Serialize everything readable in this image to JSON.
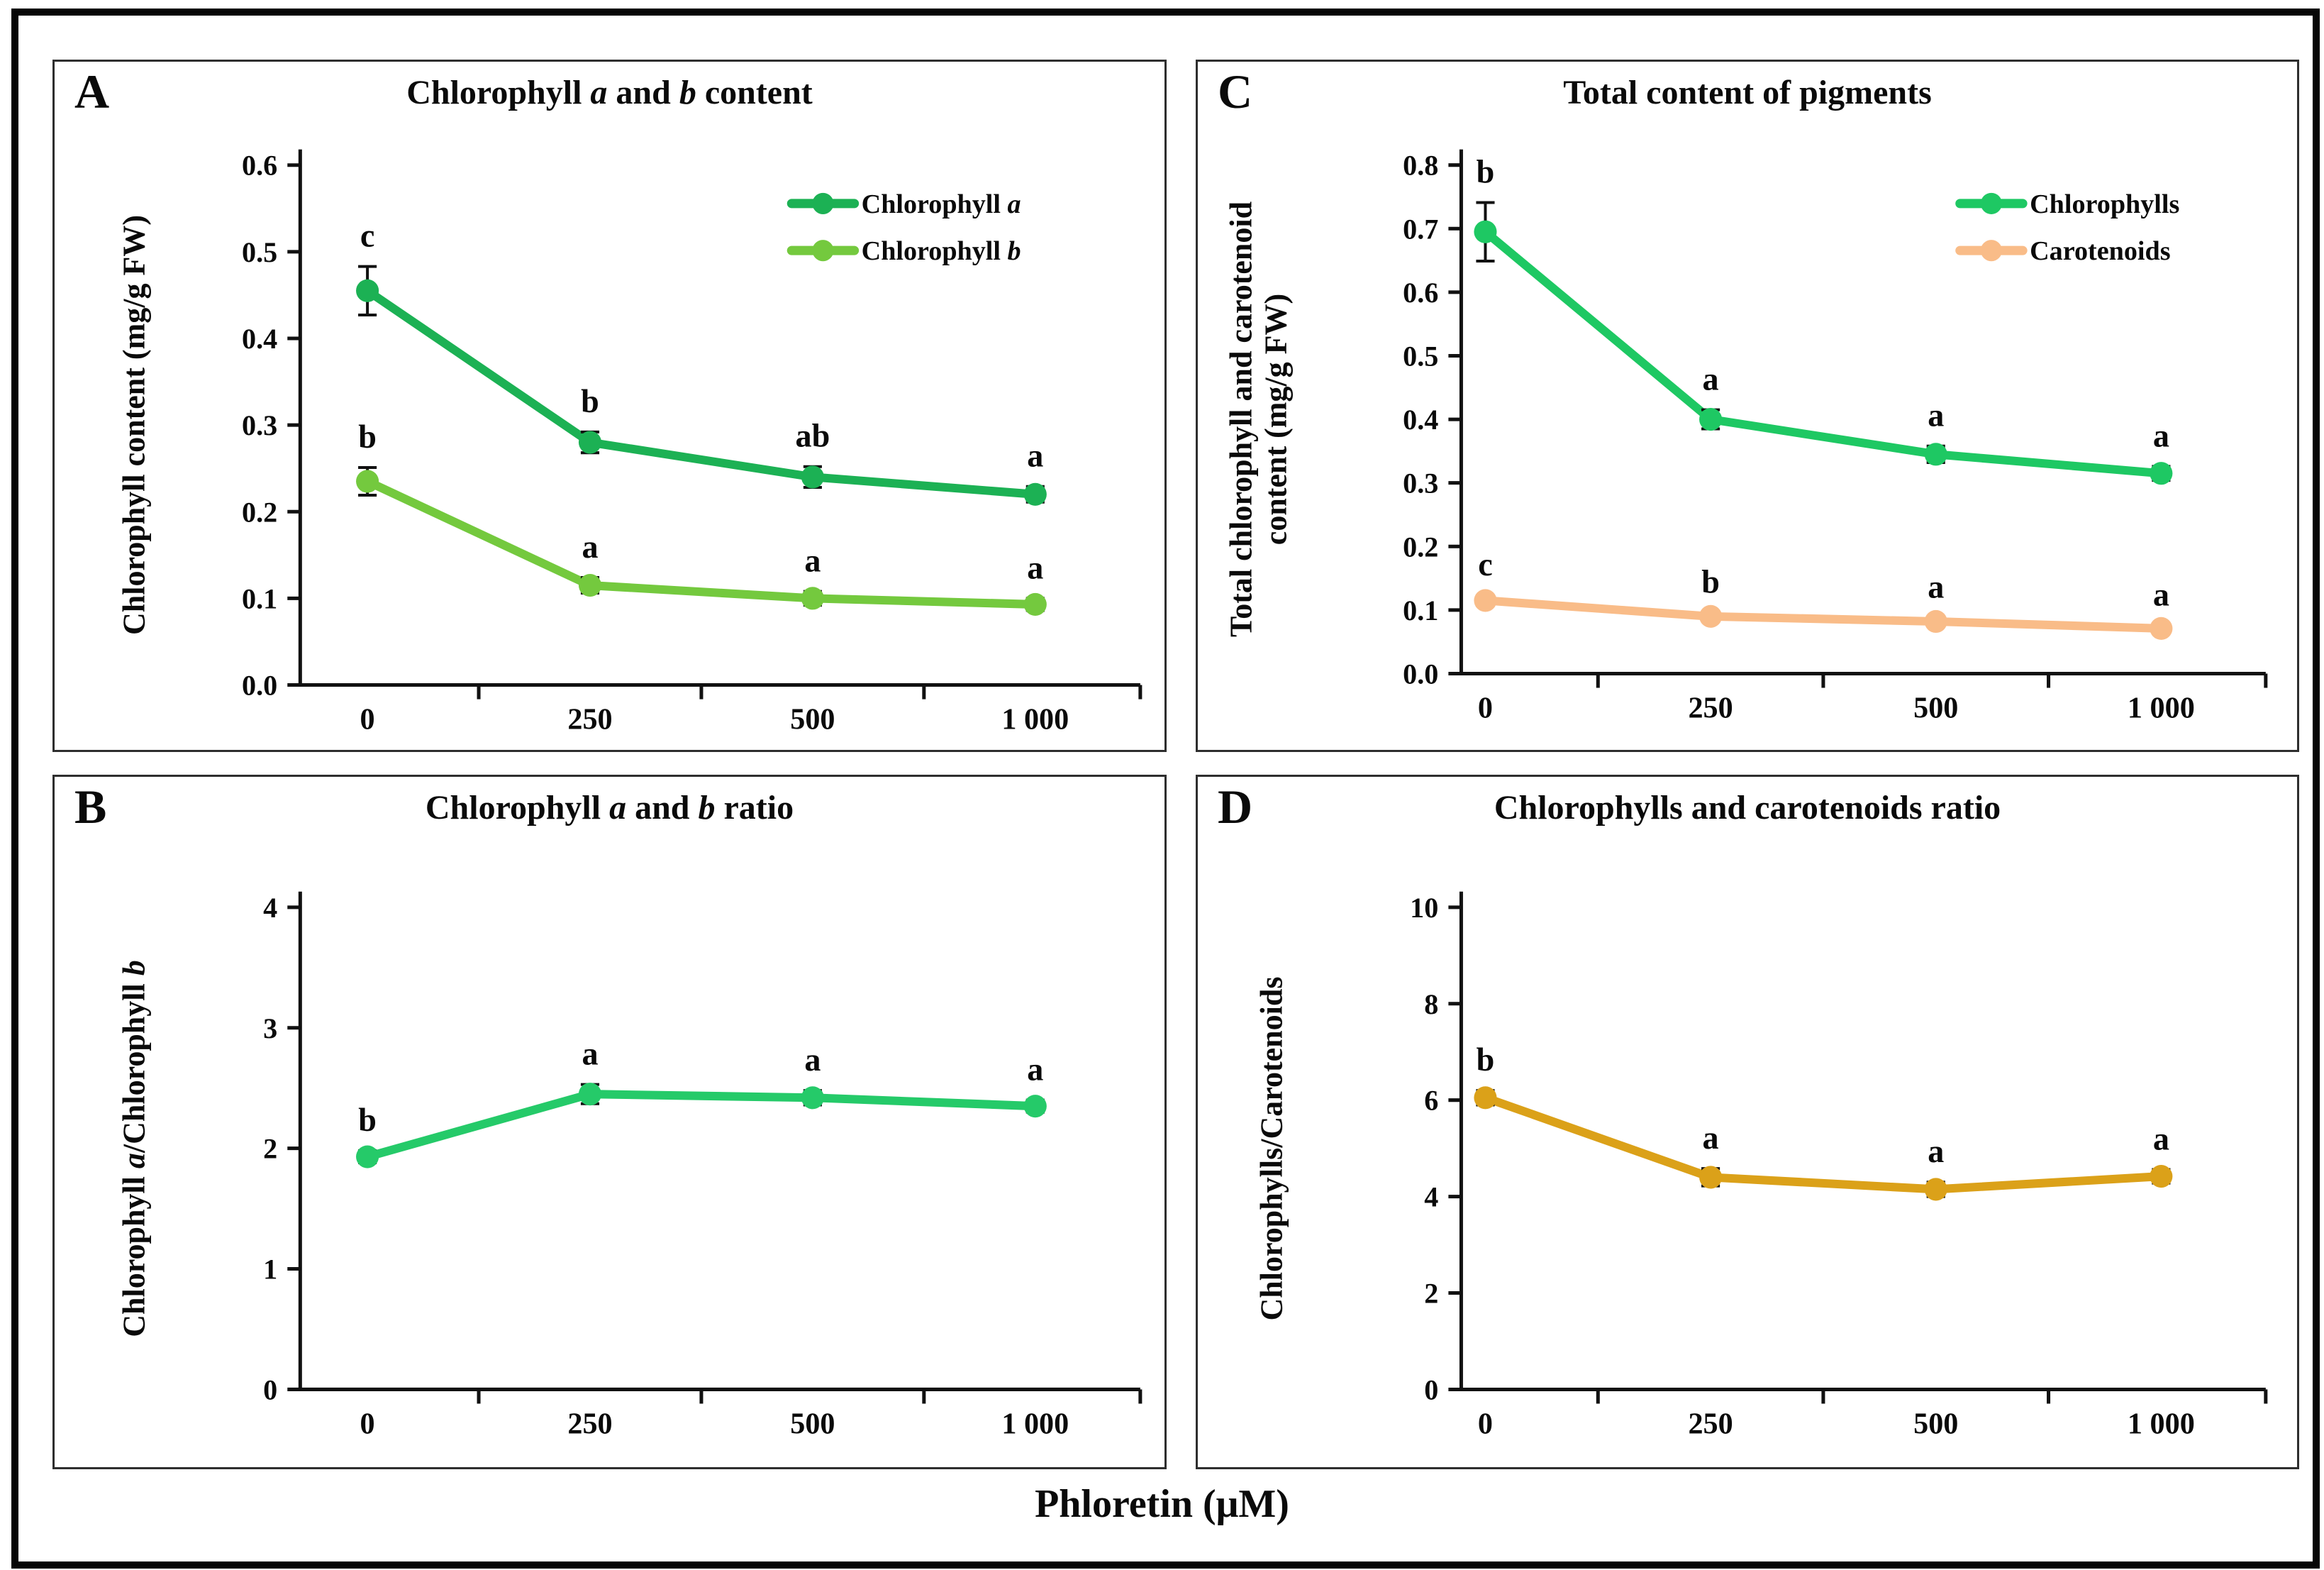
{
  "figure": {
    "xlabel": "Phloretin (μM)",
    "frame_color": "#060606",
    "background": "#ffffff",
    "error_bar_color": "#111111"
  },
  "chart_data": [
    {
      "panel_letter": "A",
      "type": "line",
      "title": "Chlorophyll a and b content",
      "title_segments": [
        {
          "t": "Chlorophyll ",
          "i": false
        },
        {
          "t": "a",
          "i": true
        },
        {
          "t": " and ",
          "i": false
        },
        {
          "t": "b",
          "i": true
        },
        {
          "t": " content",
          "i": false
        }
      ],
      "ylabel": "Chlorophyll content (mg/g FW)",
      "ylabel_lines": [
        [
          {
            "t": "Chlorophyll content (mg/g FW)",
            "i": false
          }
        ]
      ],
      "categories": [
        "0",
        "250",
        "500",
        "1 000"
      ],
      "ylim": [
        0,
        0.6
      ],
      "ytick_labels": [
        "0.0",
        "0.1",
        "0.2",
        "0.3",
        "0.4",
        "0.5",
        "0.6"
      ],
      "grid": false,
      "legend_position": "top-right",
      "show_legend": true,
      "series": [
        {
          "name": "Chlorophyll a",
          "name_segments": [
            {
              "t": "Chlorophyll ",
              "i": false
            },
            {
              "t": "a",
              "i": true
            }
          ],
          "color": "#1cb154",
          "values": [
            0.455,
            0.28,
            0.24,
            0.22
          ],
          "errors": [
            0.028,
            0.012,
            0.012,
            0.009
          ],
          "point_labels": [
            "c",
            "b",
            "ab",
            "a"
          ]
        },
        {
          "name": "Chlorophyll b",
          "name_segments": [
            {
              "t": "Chlorophyll ",
              "i": false
            },
            {
              "t": "b",
              "i": true
            }
          ],
          "color": "#74c93e",
          "values": [
            0.235,
            0.115,
            0.1,
            0.093
          ],
          "errors": [
            0.016,
            0.009,
            0.008,
            0.007
          ],
          "point_labels": [
            "b",
            "a",
            "a",
            "a"
          ]
        }
      ]
    },
    {
      "panel_letter": "B",
      "type": "line",
      "title": "Chlorophyll a and b ratio",
      "title_segments": [
        {
          "t": "Chlorophyll ",
          "i": false
        },
        {
          "t": "a",
          "i": true
        },
        {
          "t": " and ",
          "i": false
        },
        {
          "t": "b",
          "i": true
        },
        {
          "t": " ratio",
          "i": false
        }
      ],
      "ylabel": "Chlorophyll a/Chlorophyll b",
      "ylabel_lines": [
        [
          {
            "t": "Chlorophyll ",
            "i": false
          },
          {
            "t": "a",
            "i": true
          },
          {
            "t": "/Chlorophyll ",
            "i": false
          },
          {
            "t": "b",
            "i": true
          }
        ]
      ],
      "categories": [
        "0",
        "250",
        "500",
        "1 000"
      ],
      "ylim": [
        0,
        4
      ],
      "ytick_labels": [
        "0",
        "1",
        "2",
        "3",
        "4"
      ],
      "grid": false,
      "show_legend": false,
      "series": [
        {
          "name": "Chlorophyll a/Chlorophyll b",
          "color": "#25ca69",
          "values": [
            1.93,
            2.45,
            2.42,
            2.35
          ],
          "errors": [
            0.05,
            0.08,
            0.06,
            0.05
          ],
          "point_labels": [
            "b",
            "a",
            "a",
            "a"
          ]
        }
      ]
    },
    {
      "panel_letter": "C",
      "type": "line",
      "title": "Total content of pigments",
      "title_segments": [
        {
          "t": "Total content of pigments",
          "i": false
        }
      ],
      "ylabel": "Total chlorophyll and carotenoid content (mg/g FW)",
      "ylabel_lines": [
        [
          {
            "t": "Total chlorophyll and carotenoid",
            "i": false
          }
        ],
        [
          {
            "t": "content (mg/g FW)",
            "i": false
          }
        ]
      ],
      "categories": [
        "0",
        "250",
        "500",
        "1 000"
      ],
      "ylim": [
        0,
        0.8
      ],
      "ytick_labels": [
        "0.0",
        "0.1",
        "0.2",
        "0.3",
        "0.4",
        "0.5",
        "0.6",
        "0.7",
        "0.8"
      ],
      "grid": false,
      "legend_position": "top-right",
      "show_legend": true,
      "series": [
        {
          "name": "Chlorophylls",
          "name_segments": [
            {
              "t": "Chlorophylls",
              "i": false
            }
          ],
          "color": "#1ec863",
          "values": [
            0.695,
            0.4,
            0.345,
            0.315
          ],
          "errors": [
            0.046,
            0.015,
            0.013,
            0.011
          ],
          "point_labels": [
            "b",
            "a",
            "a",
            "a"
          ]
        },
        {
          "name": "Carotenoids",
          "name_segments": [
            {
              "t": "Carotenoids",
              "i": false
            }
          ],
          "color": "#f9bc88",
          "values": [
            0.115,
            0.09,
            0.082,
            0.071
          ],
          "errors": [
            0.008,
            0.006,
            0.006,
            0.005
          ],
          "point_labels": [
            "c",
            "b",
            "a",
            "a"
          ]
        }
      ]
    },
    {
      "panel_letter": "D",
      "type": "line",
      "title": "Chlorophylls and carotenoids ratio",
      "title_segments": [
        {
          "t": "Chlorophylls and carotenoids ratio",
          "i": false
        }
      ],
      "ylabel": "Chlorophylls/Carotenoids",
      "ylabel_lines": [
        [
          {
            "t": "Chlorophylls/Carotenoids",
            "i": false
          }
        ]
      ],
      "categories": [
        "0",
        "250",
        "500",
        "1 000"
      ],
      "ylim": [
        0,
        10
      ],
      "ytick_labels": [
        "0",
        "2",
        "4",
        "6",
        "8",
        "10"
      ],
      "grid": false,
      "show_legend": false,
      "series": [
        {
          "name": "Chlorophylls/Carotenoids",
          "color": "#dba119",
          "values": [
            6.05,
            4.4,
            4.15,
            4.42
          ],
          "errors": [
            0.15,
            0.18,
            0.15,
            0.14
          ],
          "point_labels": [
            "b",
            "a",
            "a",
            "a"
          ]
        }
      ]
    }
  ]
}
